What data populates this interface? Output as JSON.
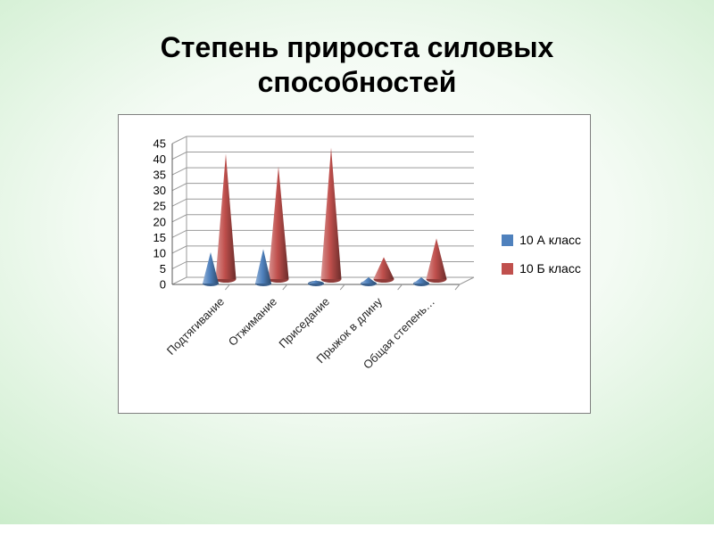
{
  "slide": {
    "title": {
      "line1": "Степень прироста силовых",
      "line2": "способностей"
    }
  },
  "chart_data": {
    "type": "bar",
    "subtype": "3d-cone",
    "title": "",
    "categories": [
      "Подтягивание",
      "Отжимание",
      "Приседание",
      "Прыжок в длину",
      "Общая степень…"
    ],
    "series": [
      {
        "name": "10 А класс",
        "color": "#4f81bd",
        "values": [
          10,
          11,
          1,
          2,
          2
        ]
      },
      {
        "name": "10 Б класс",
        "color": "#c0504d",
        "values": [
          40,
          36,
          42,
          7,
          13
        ]
      }
    ],
    "ylim": [
      0,
      45
    ],
    "yticks": [
      0,
      5,
      10,
      15,
      20,
      25,
      30,
      35,
      40,
      45
    ],
    "grid": true,
    "legend_position": "right"
  }
}
